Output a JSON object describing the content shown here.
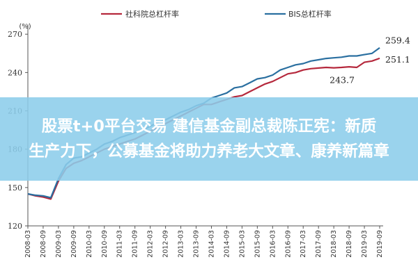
{
  "chart_data": {
    "type": "line",
    "ylabel": "(%)",
    "ylim": [
      120,
      275
    ],
    "yticks": [
      120,
      150,
      180,
      210,
      240,
      270
    ],
    "x": [
      "2008-03",
      "2008-06",
      "2008-09",
      "2008-12",
      "2009-03",
      "2009-06",
      "2009-09",
      "2009-12",
      "2010-03",
      "2010-06",
      "2010-09",
      "2010-12",
      "2011-03",
      "2011-06",
      "2011-09",
      "2011-12",
      "2012-03",
      "2012-06",
      "2012-09",
      "2012-12",
      "2013-03",
      "2013-06",
      "2013-09",
      "2013-12",
      "2014-03",
      "2014-06",
      "2014-09",
      "2014-12",
      "2015-03",
      "2015-06",
      "2015-09",
      "2015-12",
      "2016-03",
      "2016-06",
      "2016-09",
      "2016-12",
      "2017-03",
      "2017-06",
      "2017-09",
      "2017-12",
      "2018-03",
      "2018-06",
      "2018-09",
      "2018-12",
      "2019-03",
      "2019-06",
      "2019-09"
    ],
    "xticks": [
      "2008-03",
      "2008-09",
      "2009-03",
      "2009-09",
      "2010-03",
      "2010-09",
      "2011-03",
      "2011-09",
      "2012-03",
      "2012-09",
      "2013-03",
      "2013-09",
      "2014-03",
      "2014-09",
      "2015-03",
      "2015-09",
      "2016-03",
      "2016-09",
      "2017-03",
      "2017-09",
      "2018-03",
      "2018-09",
      "2019-03",
      "2019-09"
    ],
    "series": [
      {
        "name": "社科院总杠杆率",
        "color": "#b5283c",
        "values": [
          145,
          143.5,
          142.5,
          141,
          155,
          165,
          169,
          171,
          174,
          177,
          180,
          182,
          184,
          186,
          188,
          191,
          194,
          197,
          200,
          203,
          206,
          209,
          212,
          215,
          215,
          217,
          219,
          221,
          222,
          225,
          228,
          231,
          233,
          236,
          239,
          240,
          242,
          243,
          243.5,
          244,
          243.7,
          244,
          244.5,
          244,
          248,
          249,
          251.1
        ]
      },
      {
        "name": "BIS总杠杆率",
        "color": "#2a6fa0",
        "values": [
          145,
          144,
          143.5,
          142,
          157,
          168,
          173,
          174,
          177,
          180,
          184,
          186,
          189,
          191,
          193,
          195,
          198,
          201,
          203,
          206,
          209,
          211,
          214,
          216,
          220,
          222,
          224,
          228,
          229,
          232,
          235,
          236,
          238,
          242,
          244,
          246,
          247,
          249,
          250,
          251,
          251.5,
          252,
          253,
          253,
          254,
          255,
          259.4
        ]
      }
    ],
    "annotations": [
      {
        "text": "259.4",
        "x": "2019-09",
        "y": 259.4
      },
      {
        "text": "251.1",
        "x": "2019-09",
        "y": 251.1
      },
      {
        "text": "243.7",
        "x": "2018-03",
        "y": 243.7
      }
    ]
  },
  "overlay": {
    "line1": "股票t+0平台交易 建信基金副总裁陈正宪：新质",
    "line2": "生产力下，公募基金将助力养老大文章、康养新篇章"
  }
}
